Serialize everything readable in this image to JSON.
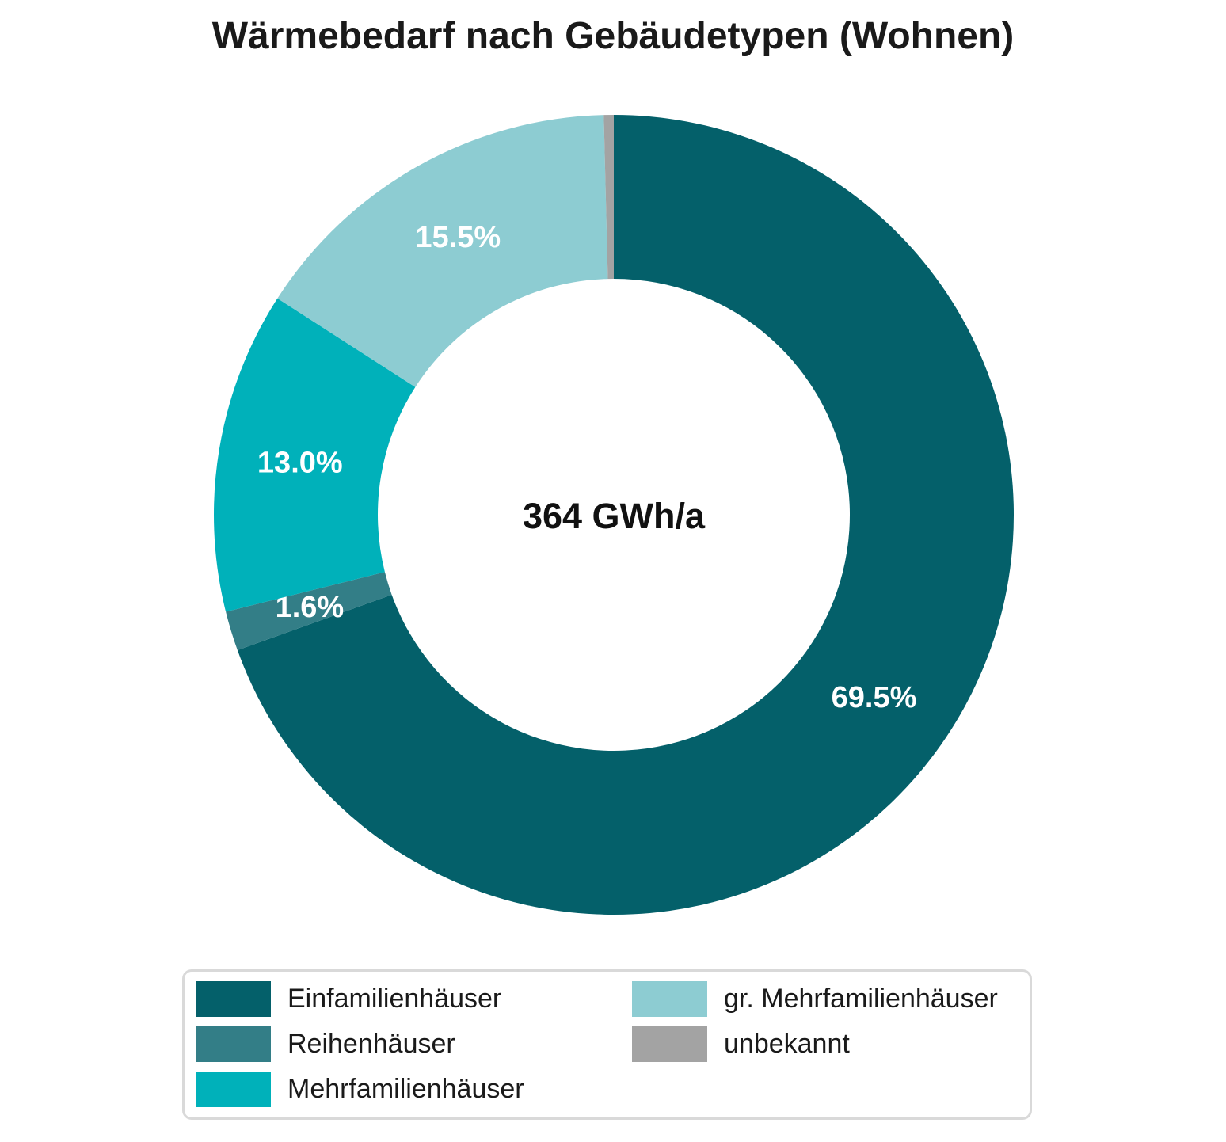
{
  "title": "Wärmebedarf nach Gebäudetypen (Wohnen)",
  "chart_data": {
    "type": "pie",
    "variant": "donut",
    "title": "Wärmebedarf nach Gebäudetypen (Wohnen)",
    "center_label": "364 GWh/a",
    "total_value": 364,
    "total_unit": "GWh/a",
    "direction": "clockwise",
    "start_angle": "top",
    "inner_radius_ratio": 0.59,
    "grid": false,
    "slices": [
      {
        "label": "Einfamilienhäuser",
        "value": 69.5,
        "pct_label": "69.5%",
        "color": "#04606A"
      },
      {
        "label": "Reihenhäuser",
        "value": 1.6,
        "pct_label": "1.6%",
        "color": "#337E87"
      },
      {
        "label": "Mehrfamilienhäuser",
        "value": 13.0,
        "pct_label": "13.0%",
        "color": "#00B1BA"
      },
      {
        "label": "gr. Mehrfamilienhäuser",
        "value": 15.5,
        "pct_label": "15.5%",
        "color": "#8DCCD2"
      },
      {
        "label": "unbekannt",
        "value": 0.4,
        "pct_label": "",
        "color": "#A3A3A3"
      }
    ],
    "legend": {
      "position": "bottom",
      "border_color": "#d9d9d9",
      "columns": [
        [
          0,
          1,
          2
        ],
        [
          3,
          4
        ]
      ]
    }
  },
  "style_tokens": {
    "label_text_color": "#ffffff",
    "title_color": "#1a1a1a",
    "background": "#ffffff"
  }
}
